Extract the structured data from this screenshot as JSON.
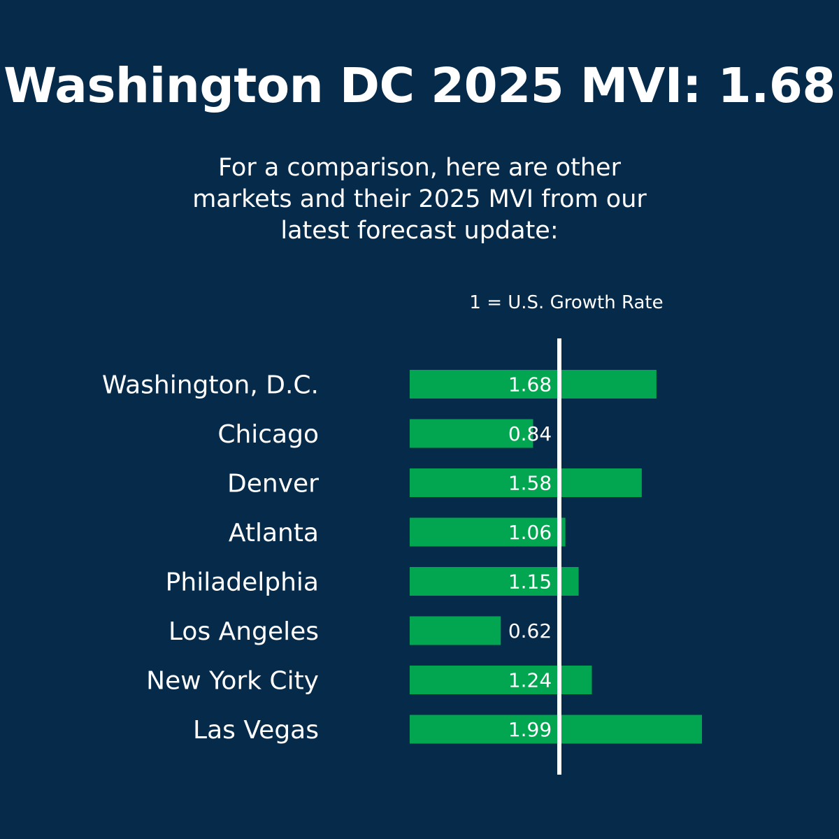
{
  "header": {
    "title": "Washington DC 2025 MVI: 1.68",
    "subtitle_lines": [
      "For a comparison, here are other",
      "markets and their 2025 MVI from our",
      "latest forecast update:"
    ]
  },
  "reference": {
    "label": "1 = U.S. Growth Rate",
    "value": 1
  },
  "colors": {
    "background": "#062a4a",
    "bar": "#02a650",
    "text": "#ffffff",
    "reference_line": "#ffffff"
  },
  "chart_data": {
    "type": "bar",
    "orientation": "horizontal",
    "categories": [
      "Washington, D.C.",
      "Chicago",
      "Denver",
      "Atlanta",
      "Philadelphia",
      "Los Angeles",
      "New York City",
      "Las Vegas"
    ],
    "values": [
      1.68,
      0.84,
      1.58,
      1.06,
      1.15,
      0.62,
      1.24,
      1.99
    ],
    "labels": [
      "1.68",
      "0.84",
      "1.58",
      "1.06",
      "1.15",
      "0.62",
      "1.24",
      "1.99"
    ],
    "xlim": [
      0,
      2
    ],
    "grid": false,
    "legend": "none"
  }
}
